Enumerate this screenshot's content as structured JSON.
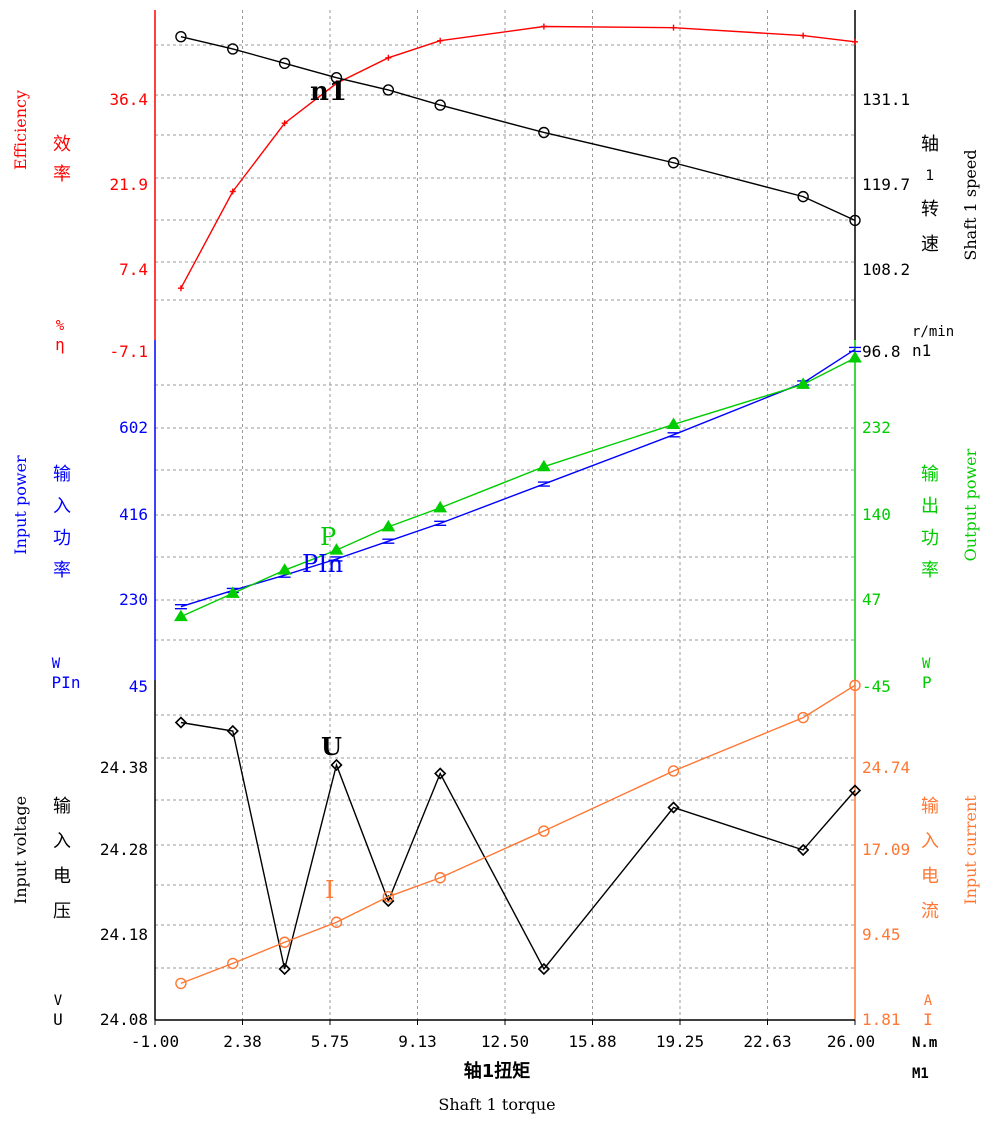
{
  "chart_data": {
    "type": "line",
    "x_axis": {
      "ticks": [
        "-1.00",
        "2.38",
        "5.75",
        "9.13",
        "12.50",
        "15.88",
        "19.25",
        "22.63",
        "26.00"
      ],
      "range": [
        -1.0,
        26.0
      ],
      "unit_label": "N.m",
      "symbol": "M1",
      "label_cn": "轴1扭矩",
      "label_en": "Shaft 1 torque"
    },
    "grid": true,
    "panels": {
      "top": {
        "left_axis": {
          "ticks": [
            "36.4",
            "21.9",
            "7.4",
            "-7.1"
          ],
          "range": [
            -7.1,
            50.9
          ],
          "color": "#ff0000",
          "label_en": "Efficiency",
          "label_cn": "效率",
          "unit": "%",
          "symbol": "η"
        },
        "right_axis": {
          "ticks": [
            "131.1",
            "119.7",
            "108.2",
            "96.8"
          ],
          "range": [
            96.8,
            142.6
          ],
          "color": "#000000",
          "label_en": "Shaft 1 speed",
          "label_cn": [
            "轴",
            "1",
            "转",
            "速"
          ],
          "unit": "r/min",
          "symbol": "n1"
        },
        "series": [
          {
            "name": "η",
            "axis": "left",
            "color": "#ff0000",
            "marker": "plus",
            "x": [
              0.0,
              2.0,
              4.0,
              6.0,
              8.0,
              10.0,
              14.0,
              19.0,
              24.0,
              26.0
            ],
            "y": [
              2.0,
              19.0,
              31.0,
              38.0,
              42.5,
              45.5,
              48.0,
              47.8,
              46.4,
              45.3
            ]
          },
          {
            "name": "n1",
            "axis": "right",
            "color": "#000000",
            "marker": "circle",
            "x": [
              0.0,
              2.0,
              4.0,
              6.0,
              8.0,
              10.0,
              14.0,
              19.0,
              24.0,
              26.0
            ],
            "y": [
              138.9,
              137.2,
              135.2,
              133.2,
              131.5,
              129.4,
              125.6,
              121.4,
              116.7,
              113.4
            ]
          }
        ],
        "annotations": [
          "n1"
        ]
      },
      "middle": {
        "left_axis": {
          "ticks": [
            "602",
            "416",
            "230",
            "45"
          ],
          "range": [
            45,
            694
          ],
          "color": "#0000ff",
          "label_en": "Input power",
          "label_cn": "输入功率",
          "unit": "W",
          "symbol": "PIn"
        },
        "right_axis": {
          "ticks": [
            "232",
            "140",
            "47",
            "-45"
          ],
          "range": [
            -45,
            277
          ],
          "color": "#00cc00",
          "label_en": "Output power",
          "label_cn": "输出功率",
          "unit": "W",
          "symbol": "P"
        },
        "series": [
          {
            "name": "PIn",
            "axis": "left",
            "color": "#0000ff",
            "marker": "dash",
            "x": [
              0.0,
              2.0,
              4.0,
              6.0,
              8.0,
              10.0,
              14.0,
              19.0,
              24.0,
              26.0
            ],
            "y": [
              185.0,
              216.0,
              245.0,
              276.0,
              310.0,
              344.0,
              419.0,
              513.0,
              612.0,
              676.0
            ]
          },
          {
            "name": "P",
            "axis": "right",
            "color": "#00cc00",
            "marker": "triangle",
            "x": [
              0.0,
              2.0,
              4.0,
              6.0,
              8.0,
              10.0,
              14.0,
              19.0,
              24.0,
              26.0
            ],
            "y": [
              15.0,
              37.0,
              59.0,
              78.0,
              100.0,
              118.0,
              157.0,
              197.0,
              235.0,
              260.0
            ]
          }
        ],
        "annotations": [
          "P",
          "PIn"
        ]
      },
      "bottom": {
        "left_axis": {
          "ticks": [
            "24.38",
            "24.28",
            "24.18",
            "24.08"
          ],
          "range": [
            24.08,
            24.48
          ],
          "color": "#000000",
          "label_en": "Input voltage",
          "label_cn": "输入电压",
          "unit": "V",
          "symbol": "U"
        },
        "right_axis": {
          "ticks": [
            "24.74",
            "17.09",
            "9.45",
            "1.81"
          ],
          "range": [
            1.81,
            32.38
          ],
          "color": "#ff7733",
          "label_en": "Input current",
          "label_cn": "输入电流",
          "unit": "A",
          "symbol": "I"
        },
        "series": [
          {
            "name": "U",
            "axis": "left",
            "color": "#000000",
            "marker": "diamond",
            "x": [
              0.0,
              2.0,
              4.0,
              6.0,
              8.0,
              10.0,
              14.0,
              19.0,
              24.0,
              26.0
            ],
            "y": [
              24.43,
              24.42,
              24.14,
              24.38,
              24.22,
              24.37,
              24.14,
              24.33,
              24.28,
              24.35
            ]
          },
          {
            "name": "I",
            "axis": "right",
            "color": "#ff7733",
            "marker": "circle",
            "x": [
              0.0,
              2.0,
              4.0,
              6.0,
              8.0,
              10.0,
              14.0,
              19.0,
              24.0,
              26.0
            ],
            "y": [
              5.1,
              6.9,
              8.8,
              10.6,
              12.9,
              14.6,
              18.8,
              24.2,
              29.0,
              31.9
            ]
          }
        ],
        "annotations": [
          "U",
          "I"
        ]
      }
    }
  }
}
